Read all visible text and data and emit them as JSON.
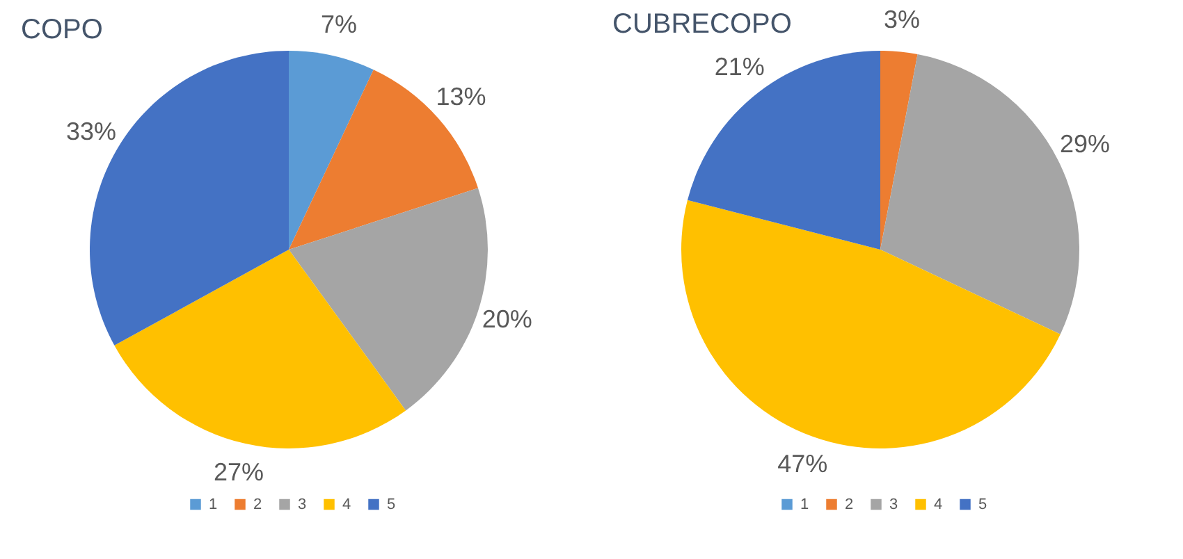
{
  "chart_data": [
    {
      "type": "pie",
      "title": "COPO",
      "categories": [
        "1",
        "2",
        "3",
        "4",
        "5"
      ],
      "values": [
        7,
        13,
        20,
        27,
        33
      ],
      "value_labels": [
        "7%",
        "13%",
        "20%",
        "27%",
        "33%"
      ],
      "colors": [
        "#5b9bd5",
        "#ed7d31",
        "#a5a5a5",
        "#ffc000",
        "#4472c4"
      ],
      "legend": "bottom"
    },
    {
      "type": "pie",
      "title": "CUBRECOPO",
      "categories": [
        "1",
        "2",
        "3",
        "4",
        "5"
      ],
      "values": [
        0,
        3,
        29,
        47,
        21
      ],
      "value_labels": [
        null,
        "3%",
        "29%",
        "47%",
        "21%"
      ],
      "colors": [
        "#5b9bd5",
        "#ed7d31",
        "#a5a5a5",
        "#ffc000",
        "#4472c4"
      ],
      "legend": "bottom"
    }
  ]
}
